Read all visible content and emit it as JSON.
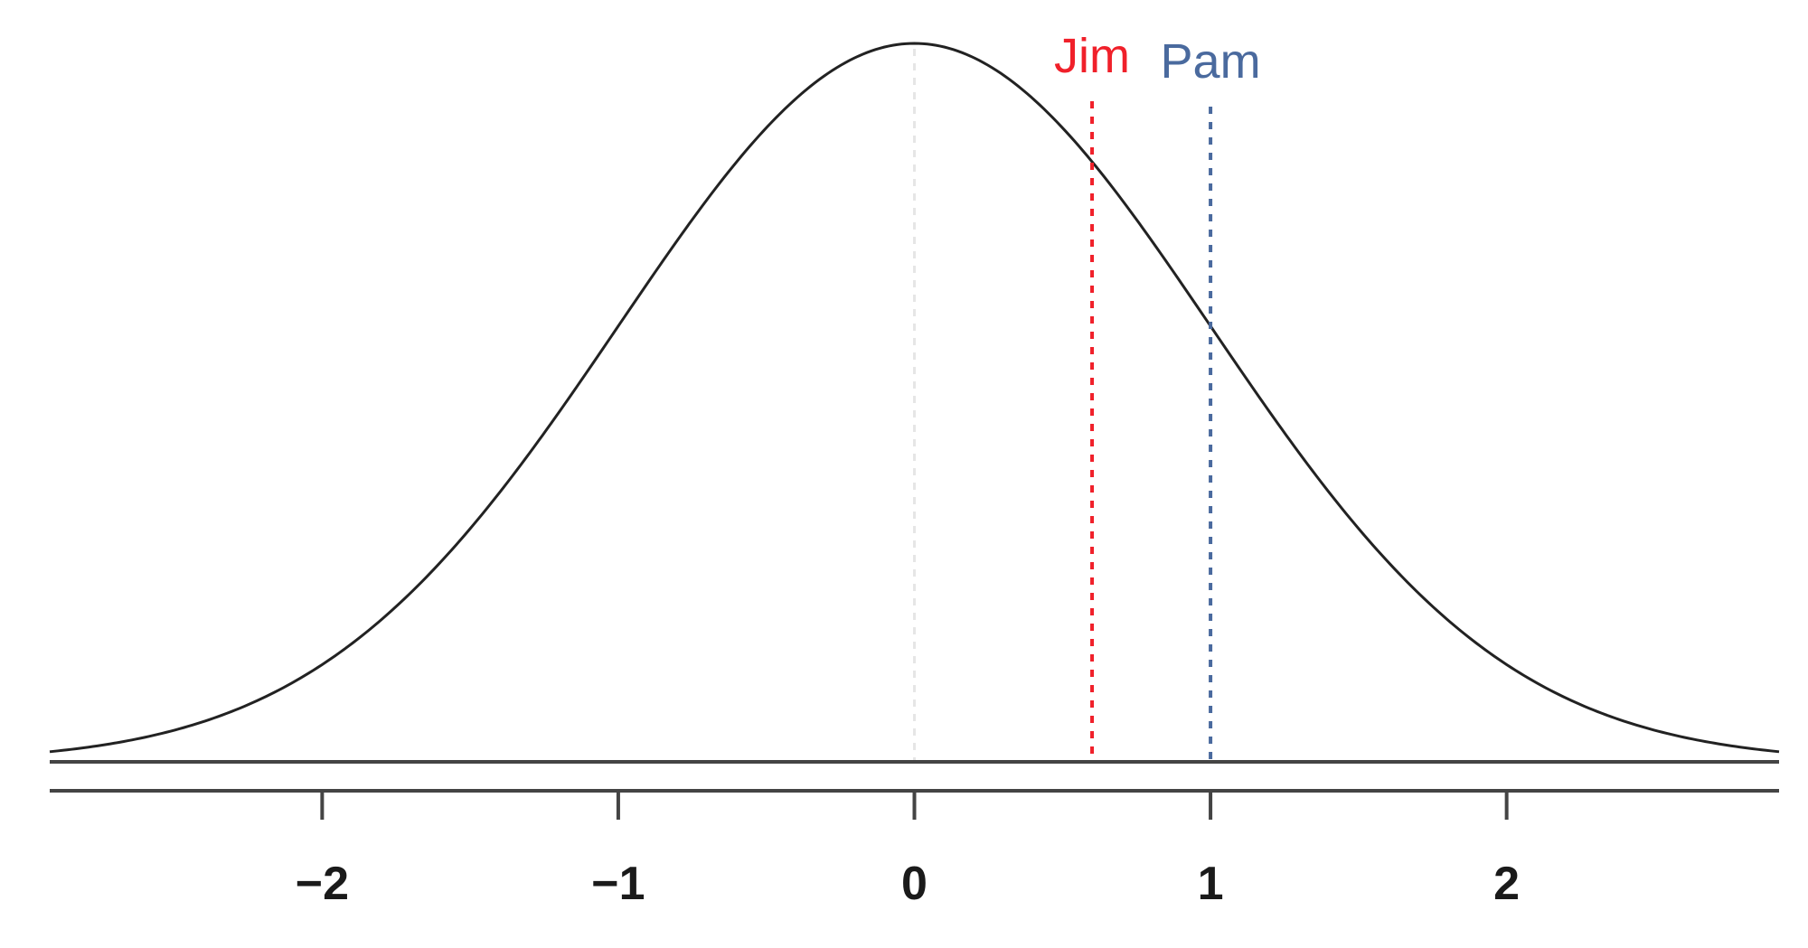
{
  "chart_data": {
    "type": "line",
    "title": "",
    "xlabel": "",
    "ylabel": "",
    "xlim": [
      -2.92,
      2.92
    ],
    "ylim": [
      0,
      0.4
    ],
    "grid": false,
    "legend": "none",
    "distribution": "standard-normal",
    "series": [
      {
        "mean": 0,
        "sd": 1,
        "color": "#222222"
      }
    ],
    "x_ticks": [
      {
        "value": -2,
        "label": "−2"
      },
      {
        "value": -1,
        "label": "−1"
      },
      {
        "value": 0,
        "label": "0"
      },
      {
        "value": 1,
        "label": "1"
      },
      {
        "value": 2,
        "label": "2"
      }
    ],
    "mean_line": {
      "x": 0,
      "color": "#e6e6e6"
    },
    "markers": [
      {
        "label": "Jim",
        "x": 0.6,
        "color": "#f0202a"
      },
      {
        "label": "Pam",
        "x": 1.0,
        "color": "#4a6a9e"
      }
    ]
  }
}
